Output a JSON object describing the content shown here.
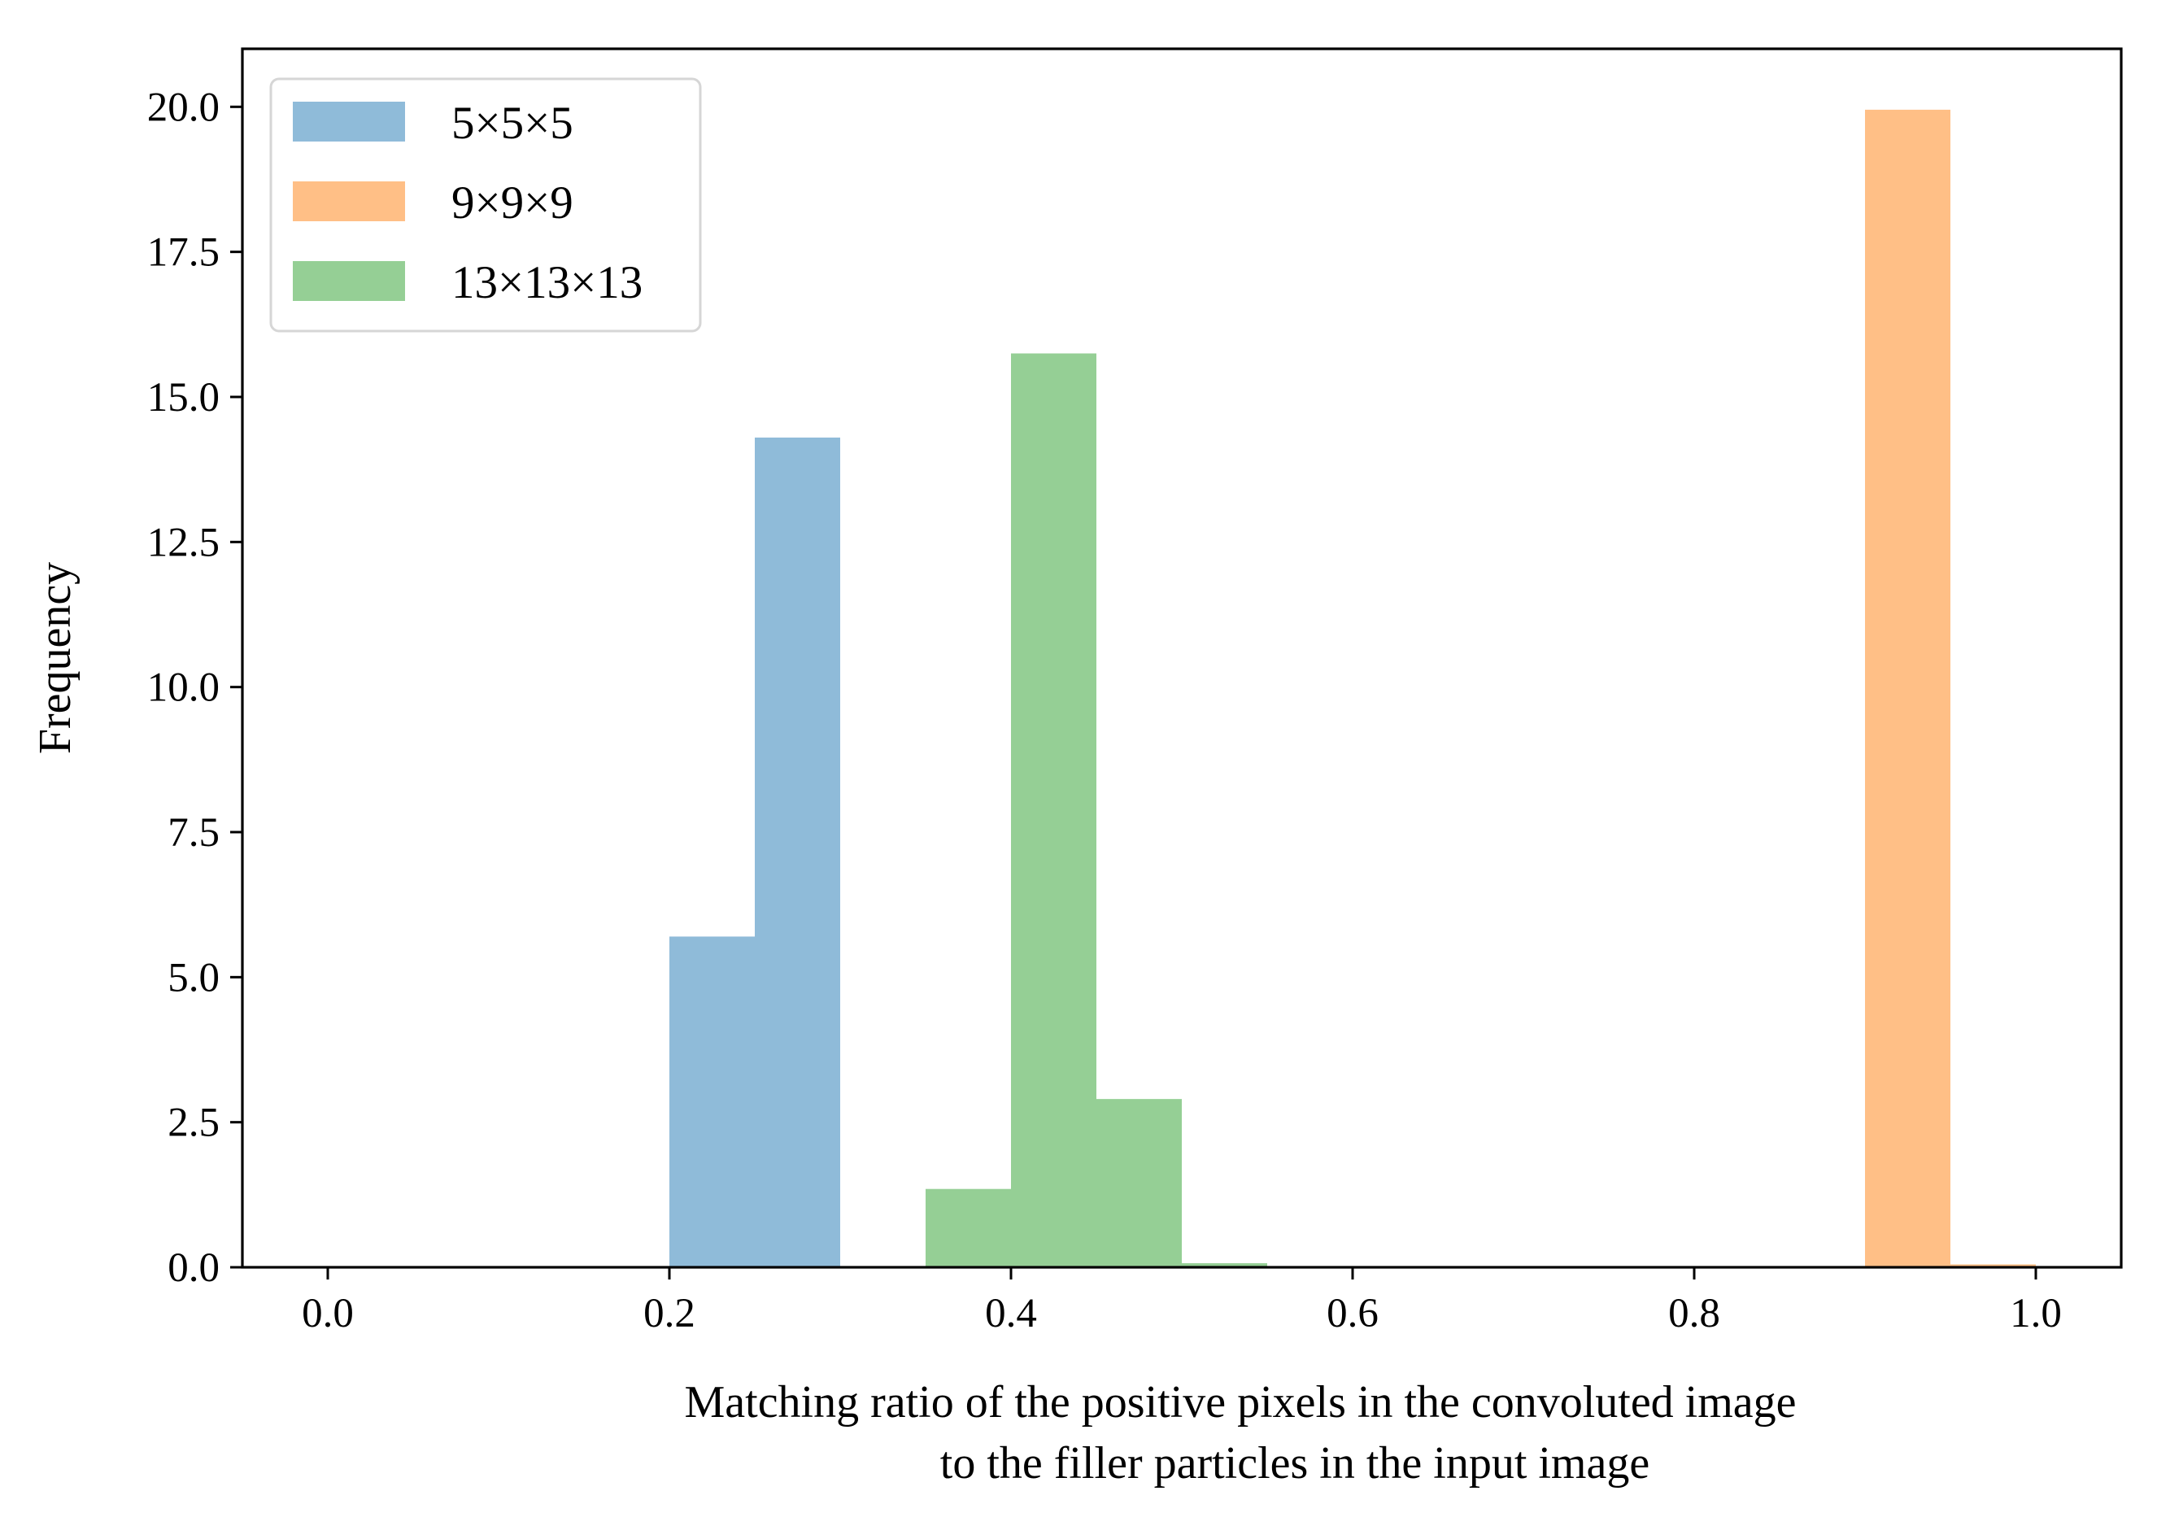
{
  "chart_data": {
    "type": "bar",
    "title": "",
    "xlabel_lines": [
      "Matching ratio of the positive pixels in the convoluted image",
      "to the filler particles in the input image"
    ],
    "ylabel": "Frequency",
    "xlim": [
      -0.05,
      1.05
    ],
    "ylim": [
      0,
      21
    ],
    "xticks": [
      0.0,
      0.2,
      0.4,
      0.6,
      0.8,
      1.0
    ],
    "xtick_labels": [
      "0.0",
      "0.2",
      "0.4",
      "0.6",
      "0.8",
      "1.0"
    ],
    "yticks": [
      0.0,
      2.5,
      5.0,
      7.5,
      10.0,
      12.5,
      15.0,
      17.5,
      20.0
    ],
    "ytick_labels": [
      "0.0",
      "2.5",
      "5.0",
      "7.5",
      "10.0",
      "12.5",
      "15.0",
      "17.5",
      "20.0"
    ],
    "grid": false,
    "legend_position": "top-left",
    "bin_width": 0.05,
    "series": [
      {
        "name": "5×5×5",
        "color": "#1f77b4",
        "opacity": 0.5,
        "bins": [
          {
            "x0": 0.2,
            "x1": 0.25,
            "value": 5.7
          },
          {
            "x0": 0.25,
            "x1": 0.3,
            "value": 14.3
          }
        ]
      },
      {
        "name": "9×9×9",
        "color": "#ff7f0e",
        "opacity": 0.5,
        "bins": [
          {
            "x0": 0.9,
            "x1": 0.95,
            "value": 19.95
          },
          {
            "x0": 0.95,
            "x1": 1.0,
            "value": 0.05
          }
        ]
      },
      {
        "name": "13×13×13",
        "color": "#2ca02c",
        "opacity": 0.5,
        "bins": [
          {
            "x0": 0.35,
            "x1": 0.4,
            "value": 1.35
          },
          {
            "x0": 0.4,
            "x1": 0.45,
            "value": 15.75
          },
          {
            "x0": 0.45,
            "x1": 0.5,
            "value": 2.9
          },
          {
            "x0": 0.5,
            "x1": 0.55,
            "value": 0.07
          }
        ]
      }
    ]
  }
}
